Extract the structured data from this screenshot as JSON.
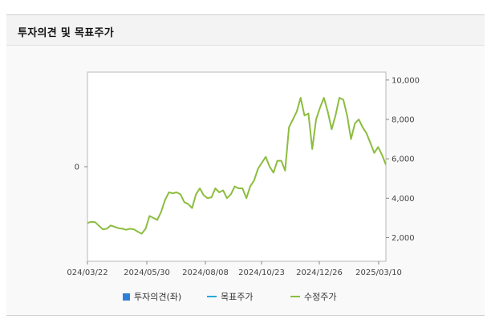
{
  "header": {
    "title": "투자의견 및 목표주가"
  },
  "chart_data": {
    "type": "line",
    "title": "",
    "x_ticks": [
      "024/03/22",
      "2024/05/30",
      "2024/08/08",
      "2024/10/23",
      "2024/12/26",
      "2025/03/10"
    ],
    "y_left_ticks": [
      "0"
    ],
    "y_right_ticks": [
      "10,000",
      "8,000",
      "6,000",
      "4,000",
      "2,000"
    ],
    "y_right_range": [
      800,
      10400
    ],
    "series": [
      {
        "name": "투자의견(좌)",
        "color": "#2f7fd8",
        "kind": "box",
        "values": []
      },
      {
        "name": "목표주가",
        "color": "#2aa6d8",
        "kind": "line",
        "values": []
      },
      {
        "name": "수정주가",
        "color": "#8cbd3f",
        "kind": "line",
        "values": [
          2750,
          2800,
          2780,
          2600,
          2420,
          2450,
          2620,
          2550,
          2480,
          2450,
          2400,
          2450,
          2420,
          2300,
          2200,
          2450,
          3100,
          3000,
          2900,
          3300,
          3900,
          4300,
          4250,
          4300,
          4200,
          3800,
          3700,
          3500,
          4200,
          4500,
          4150,
          4000,
          4050,
          4500,
          4300,
          4400,
          4000,
          4200,
          4600,
          4500,
          4500,
          4000,
          4600,
          4900,
          5500,
          5800,
          6100,
          5600,
          5300,
          5900,
          5900,
          5400,
          7600,
          8000,
          8400,
          9100,
          8200,
          8300,
          6500,
          8000,
          8600,
          9100,
          8400,
          7500,
          8200,
          9100,
          9000,
          8200,
          7000,
          7800,
          8000,
          7600,
          7300,
          6800,
          6300,
          6600,
          6200,
          5700
        ]
      }
    ],
    "grid": false,
    "legend_position": "bottom"
  }
}
